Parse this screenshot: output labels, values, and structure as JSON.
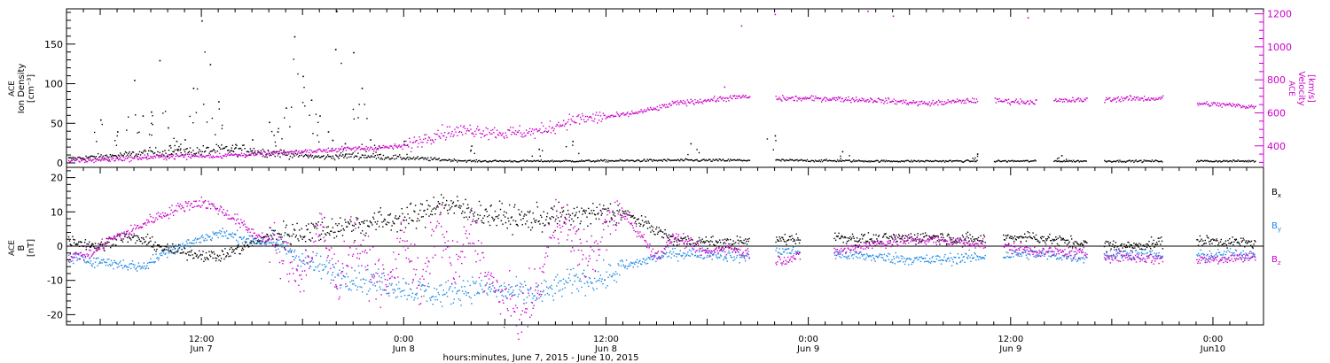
{
  "chart_data": [
    {
      "type": "scatter",
      "panel": "top",
      "ylabel_left": [
        "ACE",
        "Ion Density",
        "[cm⁻³]"
      ],
      "ylabel_right": [
        "ACE",
        "Velocity",
        "[km/s]"
      ],
      "y_left_ticks": [
        "0",
        "50",
        "100",
        "150"
      ],
      "y_right_ticks": [
        "400",
        "600",
        "800",
        "1000",
        "1200"
      ],
      "y_left_range": [
        0,
        190
      ],
      "y_right_range": [
        270,
        1230
      ],
      "colors": {
        "density": "#000000",
        "velocity": "#cc00cc"
      },
      "density_trend": [
        [
          0,
          6
        ],
        [
          6,
          10
        ],
        [
          10,
          14
        ],
        [
          14,
          15
        ],
        [
          20,
          18
        ],
        [
          24,
          14
        ],
        [
          30,
          8
        ],
        [
          34,
          10
        ],
        [
          40,
          7
        ],
        [
          48,
          3
        ],
        [
          60,
          3
        ],
        [
          72,
          4
        ],
        [
          84,
          4
        ],
        [
          96,
          3
        ],
        [
          112,
          3
        ],
        [
          120,
          3
        ],
        [
          140,
          3
        ]
      ],
      "density_spikes": [
        [
          4,
          55
        ],
        [
          6,
          40
        ],
        [
          8,
          105
        ],
        [
          9,
          60
        ],
        [
          10,
          65
        ],
        [
          11,
          130
        ],
        [
          12,
          45
        ],
        [
          13,
          28
        ],
        [
          14,
          30
        ],
        [
          15,
          95
        ],
        [
          16,
          180
        ],
        [
          17,
          125
        ],
        [
          18,
          78
        ],
        [
          20,
          20
        ],
        [
          22,
          30
        ],
        [
          24,
          52
        ],
        [
          25,
          40
        ],
        [
          26,
          70
        ],
        [
          27,
          160
        ],
        [
          28,
          110
        ],
        [
          29,
          80
        ],
        [
          30,
          60
        ],
        [
          31,
          40
        ],
        [
          32,
          192
        ],
        [
          33,
          25
        ],
        [
          34,
          140
        ],
        [
          35,
          95
        ],
        [
          36,
          30
        ],
        [
          37,
          22
        ],
        [
          40,
          28
        ],
        [
          48,
          22
        ],
        [
          56,
          18
        ],
        [
          60,
          28
        ],
        [
          74,
          25
        ],
        [
          84,
          35
        ],
        [
          92,
          15
        ],
        [
          108,
          12
        ],
        [
          118,
          10
        ]
      ],
      "velocity_trend": [
        [
          0,
          310
        ],
        [
          6,
          325
        ],
        [
          12,
          340
        ],
        [
          18,
          345
        ],
        [
          24,
          355
        ],
        [
          30,
          375
        ],
        [
          36,
          390
        ],
        [
          40,
          400
        ],
        [
          44,
          480
        ],
        [
          48,
          500
        ],
        [
          52,
          480
        ],
        [
          56,
          490
        ],
        [
          60,
          560
        ],
        [
          66,
          590
        ],
        [
          70,
          630
        ],
        [
          72,
          660
        ],
        [
          80,
          700
        ],
        [
          84,
          690
        ],
        [
          90,
          690
        ],
        [
          96,
          680
        ],
        [
          102,
          660
        ],
        [
          108,
          680
        ],
        [
          114,
          670
        ],
        [
          120,
          680
        ],
        [
          126,
          690
        ],
        [
          130,
          690
        ],
        [
          132,
          680
        ],
        [
          134,
          660
        ],
        [
          138,
          650
        ],
        [
          141,
          640
        ]
      ],
      "velocity_gaps": [
        [
          81,
          84
        ],
        [
          108,
          110
        ],
        [
          115,
          117
        ],
        [
          121,
          123
        ],
        [
          130,
          134
        ]
      ],
      "velocity_spikes": [
        [
          95,
          1220
        ],
        [
          114,
          1180
        ],
        [
          84,
          1200
        ],
        [
          80,
          1130
        ],
        [
          98,
          1190
        ],
        [
          78,
          760
        ]
      ]
    },
    {
      "type": "scatter",
      "panel": "bottom",
      "ylabel_left": [
        "ACE",
        "B",
        "[nT]"
      ],
      "y_ticks": [
        "-20",
        "-10",
        "0",
        "10",
        "20"
      ],
      "y_range": [
        -23,
        23
      ],
      "zero_line": true,
      "series": [
        {
          "name": "Bx",
          "color": "#000000",
          "values": [
            [
              0,
              2
            ],
            [
              4,
              0
            ],
            [
              6,
              3
            ],
            [
              9,
              2
            ],
            [
              12,
              -1
            ],
            [
              18,
              -3
            ],
            [
              24,
              3
            ],
            [
              30,
              5
            ],
            [
              36,
              7
            ],
            [
              42,
              9
            ],
            [
              44,
              13
            ],
            [
              48,
              10
            ],
            [
              54,
              8
            ],
            [
              60,
              9
            ],
            [
              66,
              10
            ],
            [
              72,
              2
            ],
            [
              78,
              1
            ],
            [
              84,
              2
            ],
            [
              90,
              3
            ],
            [
              96,
              2
            ],
            [
              102,
              3
            ],
            [
              108,
              2
            ],
            [
              114,
              3
            ],
            [
              120,
              1
            ],
            [
              126,
              0
            ],
            [
              132,
              2
            ],
            [
              141,
              1
            ]
          ]
        },
        {
          "name": "By",
          "color": "#1e88e5",
          "values": [
            [
              0,
              -3
            ],
            [
              3,
              -4
            ],
            [
              6,
              -5
            ],
            [
              9,
              -6
            ],
            [
              12,
              -1
            ],
            [
              18,
              4
            ],
            [
              22,
              2
            ],
            [
              26,
              0
            ],
            [
              28,
              -4
            ],
            [
              32,
              -8
            ],
            [
              36,
              -10
            ],
            [
              40,
              -12
            ],
            [
              44,
              -14
            ],
            [
              48,
              -12
            ],
            [
              52,
              -13
            ],
            [
              56,
              -14
            ],
            [
              60,
              -10
            ],
            [
              64,
              -9
            ],
            [
              66,
              -6
            ],
            [
              70,
              -3
            ],
            [
              72,
              -2
            ],
            [
              76,
              -2
            ],
            [
              80,
              -3
            ],
            [
              84,
              -1
            ],
            [
              90,
              -2
            ],
            [
              96,
              -3
            ],
            [
              102,
              -4
            ],
            [
              108,
              -3
            ],
            [
              114,
              -2
            ],
            [
              120,
              -3
            ],
            [
              126,
              -2
            ],
            [
              132,
              -3
            ],
            [
              141,
              -2
            ]
          ]
        },
        {
          "name": "Bz",
          "color": "#cc00cc",
          "values": [
            [
              0,
              -3
            ],
            [
              3,
              -2
            ],
            [
              5,
              2
            ],
            [
              8,
              5
            ],
            [
              10,
              8
            ],
            [
              12,
              10
            ],
            [
              14,
              12
            ],
            [
              16,
              13
            ],
            [
              18,
              11
            ],
            [
              20,
              8
            ],
            [
              22,
              4
            ],
            [
              24,
              2
            ],
            [
              26,
              -4
            ],
            [
              28,
              -8
            ],
            [
              30,
              6
            ],
            [
              32,
              -10
            ],
            [
              34,
              2
            ],
            [
              36,
              -6
            ],
            [
              38,
              -12
            ],
            [
              40,
              4
            ],
            [
              42,
              -14
            ],
            [
              44,
              8
            ],
            [
              46,
              -8
            ],
            [
              48,
              6
            ],
            [
              50,
              -10
            ],
            [
              52,
              -16
            ],
            [
              54,
              -20
            ],
            [
              56,
              -12
            ],
            [
              58,
              10
            ],
            [
              60,
              2
            ],
            [
              62,
              -4
            ],
            [
              64,
              6
            ],
            [
              66,
              10
            ],
            [
              70,
              -3
            ],
            [
              72,
              3
            ],
            [
              76,
              -2
            ],
            [
              78,
              0
            ],
            [
              84,
              -4
            ],
            [
              90,
              -2
            ],
            [
              96,
              1
            ],
            [
              102,
              2
            ],
            [
              108,
              1
            ],
            [
              114,
              -1
            ],
            [
              120,
              -2
            ],
            [
              126,
              -3
            ],
            [
              132,
              -4
            ],
            [
              141,
              -3
            ]
          ]
        }
      ],
      "b_gaps": [
        [
          81,
          84
        ],
        [
          87,
          91
        ],
        [
          109,
          111
        ],
        [
          121,
          123
        ],
        [
          130,
          134
        ]
      ],
      "legend": [
        {
          "label": "B",
          "sub": "x",
          "color": "#000000"
        },
        {
          "label": "B",
          "sub": "y",
          "color": "#1e88e5"
        },
        {
          "label": "B",
          "sub": "z",
          "color": "#cc00cc"
        }
      ]
    }
  ],
  "x_axis": {
    "domain_hours": [
      0,
      142
    ],
    "ticks": [
      {
        "h": 16,
        "time": "12:00",
        "date": "Jun 7"
      },
      {
        "h": 40,
        "time": "0:00",
        "date": "Jun 8"
      },
      {
        "h": 64,
        "time": "12:00",
        "date": "Jun 8"
      },
      {
        "h": 88,
        "time": "0:00",
        "date": "Jun 9"
      },
      {
        "h": 112,
        "time": "12:00",
        "date": "Jun 9"
      },
      {
        "h": 136,
        "time": "0:00",
        "date": "Jun10"
      }
    ],
    "caption": "hours:minutes, June  7, 2015 - June 10, 2015"
  }
}
